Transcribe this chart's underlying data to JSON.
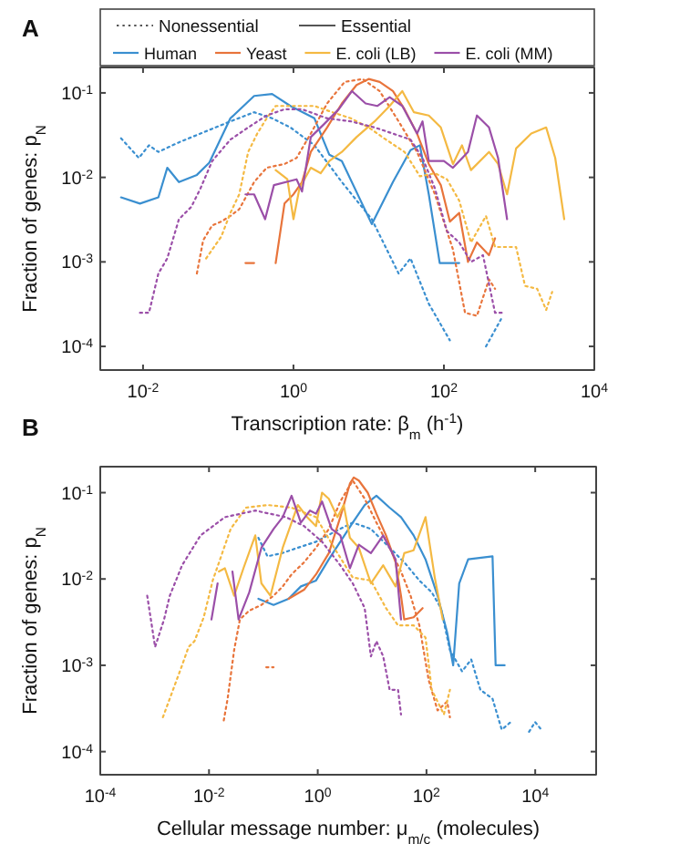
{
  "chart_data": [
    {
      "type": "line",
      "title": "A",
      "xlabel": "Transcription rate: β$_{m}$ (h$^{-1}$)",
      "ylabel": "Fraction of genes: p$_{N}$",
      "log": "xy",
      "legend": "top",
      "grid": false,
      "annotations": [
        "Nonessential",
        "Essential"
      ],
      "xlim": [
        0.0027,
        10000
      ],
      "ylim": [
        5.25e-05,
        0.2
      ],
      "xticks": [
        {
          "value": 0.01,
          "label": "10$^{-2}$"
        },
        {
          "value": 1,
          "label": "10$^{0}$"
        },
        {
          "value": 100,
          "label": "10$^{2}$"
        },
        {
          "value": 10000,
          "label": "10$^{4}$"
        }
      ],
      "yticks": [
        {
          "value": 0.0001,
          "label": "10$^{-4}$"
        },
        {
          "value": 0.001,
          "label": "10$^{-3}$"
        },
        {
          "value": 0.01,
          "label": "10$^{-2}$"
        },
        {
          "value": 0.1,
          "label": "10$^{-1}$"
        }
      ],
      "series": [
        {
          "color": "#3a8fd0",
          "line_style": "dotted",
          "x": [
            0.0051,
            0.0088,
            0.012,
            0.016,
            0.03,
            0.058,
            0.145,
            0.3,
            0.52,
            0.91,
            1.9,
            4.4,
            11,
            25,
            36,
            63,
            120,
            200,
            363,
            575
          ],
          "values": [
            0.029,
            0.017,
            0.024,
            0.02,
            0.026,
            0.033,
            0.046,
            0.059,
            0.05,
            0.039,
            0.024,
            0.0088,
            0.0032,
            0.00073,
            0.0011,
            0.00032,
            0.000118,
            null,
            0.0001,
            0.00021
          ]
        },
        {
          "name": "Human",
          "color": "#3a8fd0",
          "line_style": "solid",
          "x": [
            0.0051,
            0.0091,
            0.016,
            0.021,
            0.03,
            0.052,
            0.076,
            0.145,
            0.3,
            0.52,
            0.91,
            1.9,
            3.0,
            4.4,
            11,
            21,
            36,
            48,
            63,
            88,
            160
          ],
          "values": [
            0.0058,
            0.0049,
            0.0058,
            0.013,
            0.0088,
            0.0107,
            0.0149,
            0.05,
            0.092,
            0.097,
            0.07,
            0.05,
            0.0185,
            0.0156,
            0.0028,
            0.0088,
            0.021,
            0.024,
            0.0063,
            0.00097,
            0.00097
          ]
        },
        {
          "color": "#e8743b",
          "line_style": "dotted",
          "x": [
            0.052,
            0.063,
            0.083,
            0.11,
            0.145,
            0.19,
            0.3,
            0.44,
            0.76,
            1.1,
            1.7,
            2.8,
            4.8,
            8.3,
            14,
            25,
            44,
            76,
            132,
            191,
            275,
            398,
            479
          ],
          "values": [
            0.00073,
            0.0018,
            0.0027,
            0.003,
            0.0035,
            0.0042,
            0.0088,
            0.013,
            0.0144,
            0.017,
            0.033,
            0.075,
            0.135,
            0.146,
            0.105,
            0.046,
            0.02,
            0.0063,
            0.0014,
            0.00025,
            0.00023,
            0.00062,
            0.00048
          ]
        },
        {
          "name": "Yeast",
          "color": "#e8743b",
          "line_style": "solid",
          "x": [
            0.23,
            0.3,
            0.45,
            0.58,
            0.76,
            1.0,
            1.3,
            1.7,
            2.8,
            4.4,
            6.9,
            10,
            14,
            21,
            30,
            44,
            63,
            91,
            120,
            160,
            209,
            275,
            398,
            479
          ],
          "values": [
            0.00097,
            0.00097,
            null,
            0.00097,
            0.0049,
            0.0063,
            0.0088,
            0.02,
            0.039,
            0.075,
            0.124,
            0.146,
            0.135,
            0.105,
            0.064,
            0.033,
            0.0144,
            0.0081,
            0.003,
            0.0038,
            0.001,
            0.0017,
            0.0012,
            0.0019
          ]
        },
        {
          "color": "#f4b942",
          "line_style": "dotted",
          "x": [
            0.069,
            0.11,
            0.145,
            0.19,
            0.25,
            0.33,
            0.44,
            0.58,
            0.91,
            1.9,
            3.3,
            5.8,
            10,
            17,
            30,
            48,
            76,
            110,
            160,
            229,
            363,
            479,
            912,
            1200,
            1740,
            2290,
            2750
          ],
          "values": [
            0.0011,
            0.002,
            0.0038,
            0.0063,
            0.02,
            0.033,
            0.05,
            0.07,
            0.07,
            0.07,
            0.059,
            0.05,
            0.039,
            0.028,
            0.02,
            0.0103,
            0.0112,
            0.0095,
            0.0053,
            0.0017,
            0.0035,
            0.0015,
            0.0015,
            0.00052,
            0.00048,
            0.00027,
            0.00044
          ]
        },
        {
          "name": "E. coli (LB)",
          "color": "#f4b942",
          "line_style": "solid",
          "x": [
            0.58,
            0.83,
            1.0,
            1.2,
            1.7,
            2.3,
            3.0,
            4.4,
            6.9,
            12,
            19,
            28,
            40,
            63,
            91,
            132,
            174,
            229,
            398,
            525,
            692,
            912,
            1450,
            2290,
            3020,
            3980
          ],
          "values": [
            0.0122,
            0.0095,
            0.0032,
            0.0074,
            0.013,
            0.0112,
            0.0156,
            0.02,
            0.03,
            0.046,
            0.07,
            0.105,
            0.059,
            0.054,
            0.039,
            0.0144,
            0.024,
            0.0122,
            0.02,
            0.0144,
            0.0063,
            0.022,
            0.033,
            0.039,
            0.017,
            0.0032
          ]
        },
        {
          "color": "#9b4fa8",
          "line_style": "dotted",
          "x": [
            0.0091,
            0.012,
            0.016,
            0.021,
            0.03,
            0.044,
            0.058,
            0.083,
            0.145,
            0.25,
            0.44,
            0.76,
            1.3,
            2.8,
            5.8,
            12,
            21,
            36,
            52,
            76,
            110,
            160,
            229,
            331,
            479,
            631
          ],
          "values": [
            0.00025,
            0.00025,
            0.00073,
            0.0011,
            0.0032,
            0.0045,
            0.0074,
            0.0156,
            0.028,
            0.039,
            0.054,
            0.064,
            0.064,
            0.05,
            0.046,
            0.039,
            0.033,
            0.028,
            0.017,
            0.0074,
            0.0023,
            0.0017,
            0.001,
            0.0012,
            0.00025,
            0.00025
          ]
        },
        {
          "name": "E. coli (MM)",
          "color": "#9b4fa8",
          "line_style": "solid",
          "x": [
            0.23,
            0.3,
            0.42,
            0.55,
            1.1,
            1.3,
            1.7,
            2.5,
            4.0,
            6.0,
            9.1,
            13,
            19,
            28,
            44,
            52,
            63,
            100,
            132,
            209,
            275,
            398,
            525,
            692
          ],
          "values": [
            0.0063,
            0.0063,
            0.0032,
            0.0081,
            0.0095,
            0.0068,
            0.03,
            0.042,
            0.064,
            0.105,
            0.075,
            0.07,
            0.089,
            0.07,
            0.033,
            0.046,
            0.0156,
            0.0156,
            0.013,
            0.02,
            0.054,
            0.039,
            0.017,
            0.0032
          ]
        }
      ]
    },
    {
      "type": "line",
      "title": "B",
      "xlabel": "Cellular message number: μ$_{m/c}$ (molecules)",
      "ylabel": "Fraction of genes: p$_{N}$",
      "log": "xy",
      "grid": false,
      "xlim": [
        0.0001,
        132000
      ],
      "ylim": [
        5.4e-05,
        0.2
      ],
      "xticks": [
        {
          "value": 0.0001,
          "label": "10$^{-4}$"
        },
        {
          "value": 0.01,
          "label": "10$^{-2}$"
        },
        {
          "value": 1,
          "label": "10$^{0}$"
        },
        {
          "value": 100,
          "label": "10$^{2}$"
        },
        {
          "value": 10000,
          "label": "10$^{4}$"
        }
      ],
      "yticks": [
        {
          "value": 0.0001,
          "label": "10$^{-4}$"
        },
        {
          "value": 0.001,
          "label": "10$^{-3}$"
        },
        {
          "value": 0.01,
          "label": "10$^{-2}$"
        },
        {
          "value": 0.1,
          "label": "10$^{-1}$"
        }
      ],
      "series": [
        {
          "color": "#3a8fd0",
          "line_style": "dotted",
          "x": [
            0.081,
            0.119,
            0.22,
            0.43,
            0.93,
            2.0,
            4.4,
            9.5,
            21,
            39,
            74,
            125,
            184,
            270,
            452,
            665,
            980,
            1640,
            2420,
            3550,
            5000,
            7700,
            9960,
            12900
          ],
          "values": [
            0.03,
            0.0183,
            0.0199,
            0.023,
            0.027,
            0.035,
            0.045,
            0.038,
            0.023,
            0.0156,
            0.0096,
            0.007,
            0.0046,
            0.0015,
            0.00085,
            0.00117,
            0.00052,
            0.00041,
            0.00018,
            0.00022,
            null,
            0.00017,
            0.00022,
            0.00018
          ]
        },
        {
          "color": "#3a8fd0",
          "line_style": "solid",
          "x": [
            0.081,
            0.154,
            0.29,
            0.49,
            0.93,
            1.6,
            2.6,
            4.4,
            7.3,
            12,
            21,
            34,
            58,
            96,
            160,
            240,
            310,
            400,
            585,
            1640,
            1870,
            2740
          ],
          "values": [
            0.0059,
            0.005,
            0.0059,
            0.0082,
            0.0096,
            0.0169,
            0.027,
            0.045,
            0.072,
            0.092,
            0.067,
            0.052,
            0.032,
            0.0169,
            0.0064,
            0.0024,
            0.001,
            0.0089,
            0.0169,
            0.0183,
            0.001,
            0.001
          ]
        },
        {
          "color": "#e8743b",
          "line_style": "dotted",
          "x": [
            0.0187,
            0.022,
            0.029,
            0.037,
            0.055,
            0.092,
            0.154,
            0.227,
            0.33,
            0.56,
            0.93,
            1.6,
            2.6,
            4.4,
            7.3,
            12,
            21,
            34,
            51,
            74,
            110,
            160,
            240,
            270
          ],
          "values": [
            0.00023,
            0.00041,
            0.0015,
            0.0034,
            0.0043,
            0.005,
            0.0064,
            0.0082,
            0.0113,
            0.0156,
            0.023,
            0.038,
            0.079,
            0.138,
            0.085,
            0.045,
            0.023,
            0.0122,
            0.0064,
            0.0029,
            0.00067,
            0.0003,
            0.00038,
            0.00025
          ]
        },
        {
          "color": "#e8743b",
          "line_style": "dotted",
          "x": [
            0.113,
            0.154
          ],
          "values": [
            0.00095,
            0.00095
          ]
        },
        {
          "color": "#e8743b",
          "line_style": "solid",
          "x": [
            0.29,
            0.56,
            0.93,
            1.6,
            2.6,
            3.9,
            4.6,
            5.7,
            8.3,
            12,
            18,
            27,
            34,
            39,
            58,
            85
          ],
          "values": [
            0.0059,
            0.0075,
            0.0113,
            0.0199,
            0.052,
            0.127,
            0.15,
            0.138,
            0.1,
            0.057,
            0.032,
            0.0156,
            0.0064,
            0.0034,
            0.0036,
            0.0046
          ]
        },
        {
          "color": "#f4b942",
          "line_style": "dotted",
          "x": [
            0.00142,
            0.0032,
            0.0042,
            0.0054,
            0.008,
            0.0117,
            0.025,
            0.048,
            0.119,
            0.33,
            0.93,
            2.0,
            4.4,
            9.5,
            18,
            30,
            58,
            96,
            125,
            209,
            270
          ],
          "values": [
            0.00025,
            0.001,
            0.00163,
            0.0019,
            0.0036,
            0.0096,
            0.038,
            0.067,
            0.072,
            0.067,
            0.052,
            0.023,
            0.0104,
            0.0096,
            0.0046,
            0.0029,
            0.0029,
            0.0021,
            0.00052,
            0.00027,
            0.00052
          ]
        },
        {
          "color": "#f4b942",
          "line_style": "solid",
          "x": [
            0.0152,
            0.0196,
            0.029,
            0.043,
            0.071,
            0.092,
            0.135,
            0.227,
            0.33,
            0.43,
            0.64,
            0.93,
            1.2,
            1.6,
            2.3,
            3.0,
            3.9,
            5.7,
            9.5,
            16,
            27,
            39,
            58,
            96,
            142,
            199
          ],
          "values": [
            0.0122,
            0.0133,
            0.0064,
            0.0133,
            0.032,
            0.0089,
            0.0064,
            0.023,
            0.045,
            0.072,
            0.052,
            0.041,
            0.1,
            0.085,
            0.052,
            0.072,
            0.03,
            0.023,
            0.0089,
            0.0144,
            0.0082,
            0.0199,
            0.0215,
            0.052,
            0.0104,
            0.0034
          ]
        },
        {
          "color": "#9b4fa8",
          "line_style": "dotted",
          "x": [
            0.00073,
            0.00102,
            0.00149,
            0.0019,
            0.0032,
            0.007,
            0.0196,
            0.071,
            0.26,
            0.56,
            1.2,
            2.6,
            4.4,
            7.3,
            9.5,
            12,
            16,
            21,
            30,
            34
          ],
          "values": [
            0.0064,
            0.00163,
            0.0034,
            0.0064,
            0.0144,
            0.032,
            0.052,
            0.062,
            0.052,
            0.041,
            0.027,
            0.0144,
            0.0089,
            0.0046,
            0.00127,
            0.0019,
            0.00127,
            0.00052,
            0.00052,
            0.00027
          ]
        },
        {
          "color": "#9b4fa8",
          "line_style": "solid",
          "x": [
            0.0111,
            0.0144,
            0.02,
            0.027,
            0.035,
            0.055,
            0.092,
            0.154,
            0.227,
            0.33,
            0.49,
            0.72,
            0.93,
            1.2,
            1.8,
            2.6,
            3.9,
            5.7,
            9.5,
            16,
            27,
            34
          ],
          "values": [
            0.0034,
            0.0089,
            null,
            0.0122,
            0.0034,
            0.007,
            0.023,
            0.038,
            0.052,
            0.092,
            0.045,
            0.062,
            0.057,
            0.079,
            0.038,
            0.032,
            0.0133,
            0.025,
            0.0199,
            0.032,
            0.0169,
            0.0034
          ]
        }
      ]
    }
  ]
}
